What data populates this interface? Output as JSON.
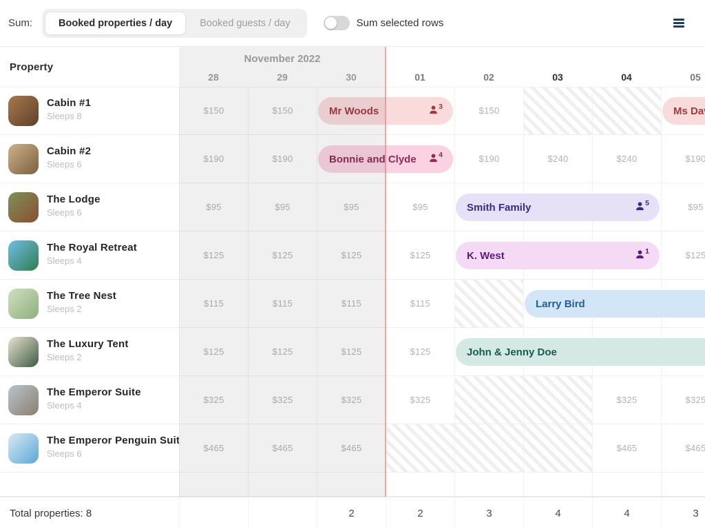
{
  "toolbar": {
    "sum_label": "Sum:",
    "segments": [
      {
        "label": "Booked properties / day",
        "selected": true
      },
      {
        "label": "Booked guests / day",
        "selected": false
      }
    ],
    "toggle_label": "Sum selected rows",
    "toggle_on": false,
    "menu_icon": "hamburger-icon"
  },
  "calendar": {
    "month_header": "November 2022",
    "days": [
      {
        "label": "28",
        "in_november": true
      },
      {
        "label": "29",
        "in_november": true
      },
      {
        "label": "30",
        "in_november": true
      },
      {
        "label": "01",
        "in_november": false
      },
      {
        "label": "02",
        "in_november": false
      },
      {
        "label": "03",
        "in_november": false,
        "bold": true
      },
      {
        "label": "04",
        "in_november": false,
        "bold": true
      },
      {
        "label": "05",
        "in_november": false
      }
    ]
  },
  "property_column_header": "Property",
  "booking_colors": {
    "red": {
      "bg": "#f9dbdb",
      "fg": "#a23a3c"
    },
    "pink": {
      "bg": "#fad2e2",
      "fg": "#8e2c53"
    },
    "purple": {
      "bg": "#e7e1f8",
      "fg": "#392b7e"
    },
    "orchid": {
      "bg": "#f4daf5",
      "fg": "#5f1a78"
    },
    "blue": {
      "bg": "#d2e6f8",
      "fg": "#1f5f94"
    },
    "teal": {
      "bg": "#d5e9e4",
      "fg": "#175a50"
    }
  },
  "properties": [
    {
      "name": "Cabin #1",
      "sleeps": "Sleeps 8",
      "thumb": [
        "#a8784f",
        "#5f4128"
      ],
      "prices": {
        "28": "$150",
        "29": "$150",
        "02": "$150"
      },
      "unavailable": [
        {
          "start": "03",
          "span": 2
        }
      ],
      "bookings": [
        {
          "guest": "Mr Woods",
          "guests": "3",
          "start": "30",
          "span": 2,
          "color": "red"
        },
        {
          "guest": "Ms Dav",
          "start": "05",
          "span": 2,
          "clipped": true,
          "color": "red"
        }
      ]
    },
    {
      "name": "Cabin #2",
      "sleeps": "Sleeps 6",
      "thumb": [
        "#cbb28c",
        "#7d5f3e"
      ],
      "prices": {
        "28": "$190",
        "29": "$190",
        "02": "$190",
        "03": "$240",
        "04": "$240",
        "05": "$190"
      },
      "unavailable": [],
      "bookings": [
        {
          "guest": "Bonnie and Clyde",
          "guests": "4",
          "start": "30",
          "span": 2,
          "color": "pink"
        }
      ]
    },
    {
      "name": "The Lodge",
      "sleeps": "Sleeps 6",
      "thumb": [
        "#7d9057",
        "#8a4f35"
      ],
      "prices": {
        "28": "$95",
        "29": "$95",
        "30": "$95",
        "01": "$95",
        "05": "$95"
      },
      "unavailable": [],
      "bookings": [
        {
          "guest": "Smith Family",
          "guests": "5",
          "start": "02",
          "span": 3,
          "color": "purple"
        }
      ]
    },
    {
      "name": "The Royal Retreat",
      "sleeps": "Sleeps 4",
      "thumb": [
        "#6fbde8",
        "#2f7d4f"
      ],
      "prices": {
        "28": "$125",
        "29": "$125",
        "30": "$125",
        "01": "$125",
        "05": "$125"
      },
      "unavailable": [],
      "bookings": [
        {
          "guest": "K. West",
          "guests": "1",
          "start": "02",
          "span": 3,
          "color": "orchid"
        }
      ]
    },
    {
      "name": "The Tree Nest",
      "sleeps": "Sleeps 2",
      "thumb": [
        "#cfe0c0",
        "#8fae7e"
      ],
      "prices": {
        "28": "$115",
        "29": "$115",
        "30": "$115",
        "01": "$115"
      },
      "unavailable": [
        {
          "start": "02",
          "span": 1
        }
      ],
      "bookings": [
        {
          "guest": "Larry Bird",
          "start": "03",
          "span": 4,
          "clipped": true,
          "color": "blue"
        }
      ]
    },
    {
      "name": "The Luxury Tent",
      "sleeps": "Sleeps 2",
      "thumb": [
        "#e8e2d2",
        "#3f5c42"
      ],
      "prices": {
        "28": "$125",
        "29": "$125",
        "30": "$125",
        "01": "$125"
      },
      "unavailable": [],
      "bookings": [
        {
          "guest": "John & Jenny Doe",
          "start": "02",
          "span": 5,
          "clipped": true,
          "color": "teal"
        }
      ]
    },
    {
      "name": "The Emperor Suite",
      "sleeps": "Sleeps 4",
      "thumb": [
        "#b8c4cc",
        "#8a7f6f"
      ],
      "prices": {
        "28": "$325",
        "29": "$325",
        "30": "$325",
        "01": "$325",
        "04": "$325",
        "05": "$325"
      },
      "unavailable": [
        {
          "start": "02",
          "span": 2
        }
      ],
      "bookings": []
    },
    {
      "name": "The Emperor Penguin Suit",
      "sleeps": "Sleeps 6",
      "thumb": [
        "#dce9f2",
        "#5aa7d6"
      ],
      "prices": {
        "28": "$465",
        "29": "$465",
        "30": "$465",
        "04": "$465",
        "05": "$465"
      },
      "unavailable": [
        {
          "start": "01",
          "span": 3
        }
      ],
      "bookings": []
    }
  ],
  "totals": {
    "label": "Total properties: 8",
    "values": {
      "30": "2",
      "01": "2",
      "02": "3",
      "03": "4",
      "04": "4",
      "05": "3"
    }
  }
}
